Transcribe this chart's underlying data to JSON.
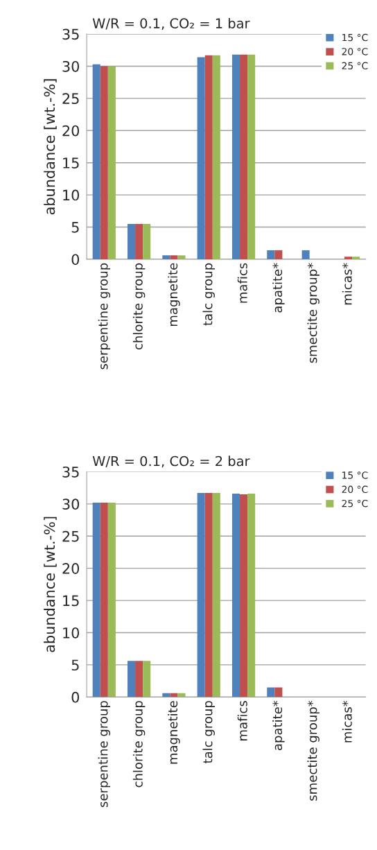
{
  "chart_data": [
    {
      "type": "bar",
      "title": "W/R = 0.1, CO₂ = 1 bar",
      "ylabel": "abundance [wt.-%]",
      "categories": [
        "serpentine group",
        "chlorite group",
        "magnetite",
        "talc group",
        "mafics",
        "apatite*",
        "smectite group*",
        "micas*"
      ],
      "series": [
        {
          "name": "15 °C",
          "color": "#4f81bd",
          "values": [
            30.3,
            5.5,
            0.6,
            31.4,
            31.8,
            1.4,
            1.4,
            null
          ]
        },
        {
          "name": "20 °C",
          "color": "#c0504d",
          "values": [
            30.0,
            5.5,
            0.6,
            31.7,
            31.8,
            1.4,
            null,
            0.4
          ]
        },
        {
          "name": "25 °C",
          "color": "#9bbb59",
          "values": [
            30.0,
            5.5,
            0.6,
            31.7,
            31.8,
            null,
            null,
            0.4
          ]
        }
      ],
      "ylim": [
        0,
        35
      ],
      "yticks": [
        0,
        5,
        10,
        15,
        20,
        25,
        30,
        35
      ],
      "grid": "y",
      "legend": "top right"
    },
    {
      "type": "bar",
      "title": "W/R = 0.1, CO₂ = 2 bar",
      "ylabel": "abundance [wt.-%]",
      "categories": [
        "serpentine group",
        "chlorite group",
        "magnetite",
        "talc group",
        "mafics",
        "apatite*",
        "smectite group*",
        "micas*"
      ],
      "series": [
        {
          "name": "15 °C",
          "color": "#4f81bd",
          "values": [
            30.2,
            5.6,
            0.6,
            31.7,
            31.6,
            1.5,
            null,
            null
          ]
        },
        {
          "name": "20 °C",
          "color": "#c0504d",
          "values": [
            30.2,
            5.6,
            0.6,
            31.7,
            31.5,
            1.5,
            null,
            null
          ]
        },
        {
          "name": "25 °C",
          "color": "#9bbb59",
          "values": [
            30.2,
            5.6,
            0.6,
            31.7,
            31.6,
            null,
            null,
            null
          ]
        }
      ],
      "ylim": [
        0,
        35
      ],
      "yticks": [
        0,
        5,
        10,
        15,
        20,
        25,
        30,
        35
      ],
      "grid": "y",
      "legend": "top right"
    }
  ]
}
